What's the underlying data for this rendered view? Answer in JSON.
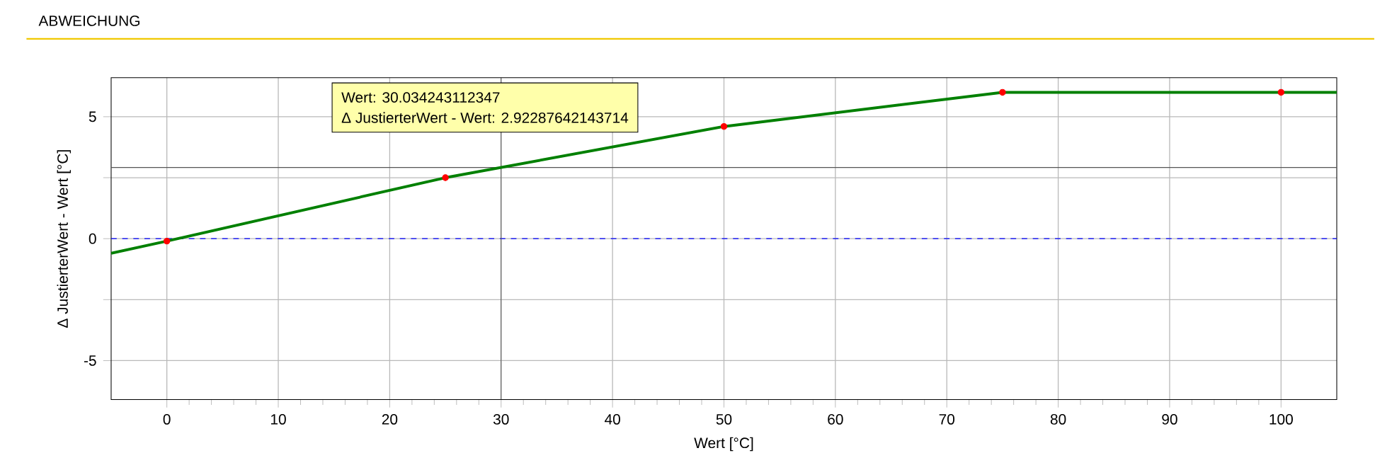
{
  "chart_data": {
    "type": "line",
    "title": "ABWEICHUNG",
    "xlabel": "Wert [°C]",
    "ylabel": "Δ JustierterWert - Wert [°C]",
    "xlim": [
      -5,
      105
    ],
    "ylim": [
      -6.6,
      6.6
    ],
    "xticks": [
      0,
      10,
      20,
      30,
      40,
      50,
      60,
      70,
      80,
      90,
      100
    ],
    "yticks": [
      -5,
      {
        "value": -2.5,
        "label": null
      },
      0,
      {
        "value": 2.5,
        "label": null
      },
      5
    ],
    "grid": true,
    "series": [
      {
        "color": "#008000",
        "marker": "none",
        "x": [
          -5,
          0,
          25,
          50,
          75,
          100,
          105
        ],
        "values": [
          -0.6,
          -0.1,
          2.5,
          4.6,
          6.0,
          6.0,
          6.0
        ]
      },
      {
        "type": "scatter",
        "color": "#ff0000",
        "marker": "circle",
        "x": [
          0,
          25,
          50,
          75,
          100
        ],
        "values": [
          -0.1,
          2.5,
          4.6,
          6.0,
          6.0
        ]
      }
    ],
    "ref_lines": [
      {
        "axis": "y",
        "value": 0,
        "color": "#0000ff",
        "line_style": "dashed"
      },
      {
        "axis": "x",
        "value": 30,
        "color": "#555555",
        "line_style": "solid"
      },
      {
        "axis": "y",
        "value": 2.92,
        "color": "#555555",
        "line_style": "solid"
      }
    ],
    "annotations": [
      "Wert: 30.034243112347",
      "Δ JustierterWert - Wert: 2.92287642143714"
    ]
  }
}
